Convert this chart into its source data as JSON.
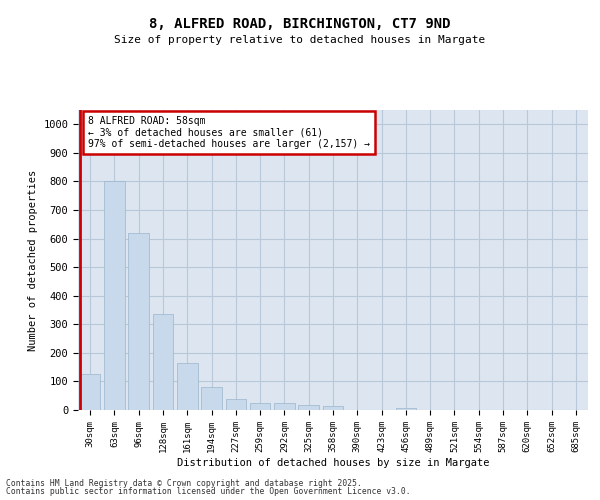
{
  "title1": "8, ALFRED ROAD, BIRCHINGTON, CT7 9ND",
  "title2": "Size of property relative to detached houses in Margate",
  "xlabel": "Distribution of detached houses by size in Margate",
  "ylabel": "Number of detached properties",
  "categories": [
    "30sqm",
    "63sqm",
    "96sqm",
    "128sqm",
    "161sqm",
    "194sqm",
    "227sqm",
    "259sqm",
    "292sqm",
    "325sqm",
    "358sqm",
    "390sqm",
    "423sqm",
    "456sqm",
    "489sqm",
    "521sqm",
    "554sqm",
    "587sqm",
    "620sqm",
    "652sqm",
    "685sqm"
  ],
  "values": [
    125,
    800,
    620,
    335,
    165,
    80,
    38,
    25,
    23,
    16,
    13,
    0,
    0,
    8,
    0,
    0,
    0,
    0,
    0,
    0,
    0
  ],
  "bar_color": "#c8d9eb",
  "bar_edgecolor": "#9ab4cc",
  "highlight_color": "#cc0000",
  "annotation_text": "8 ALFRED ROAD: 58sqm\n← 3% of detached houses are smaller (61)\n97% of semi-detached houses are larger (2,157) →",
  "annotation_box_color": "#cc0000",
  "grid_color": "#b8c8d8",
  "bg_color": "#dde6f0",
  "ylim": [
    0,
    1050
  ],
  "yticks": [
    0,
    100,
    200,
    300,
    400,
    500,
    600,
    700,
    800,
    900,
    1000
  ],
  "footer1": "Contains HM Land Registry data © Crown copyright and database right 2025.",
  "footer2": "Contains public sector information licensed under the Open Government Licence v3.0."
}
